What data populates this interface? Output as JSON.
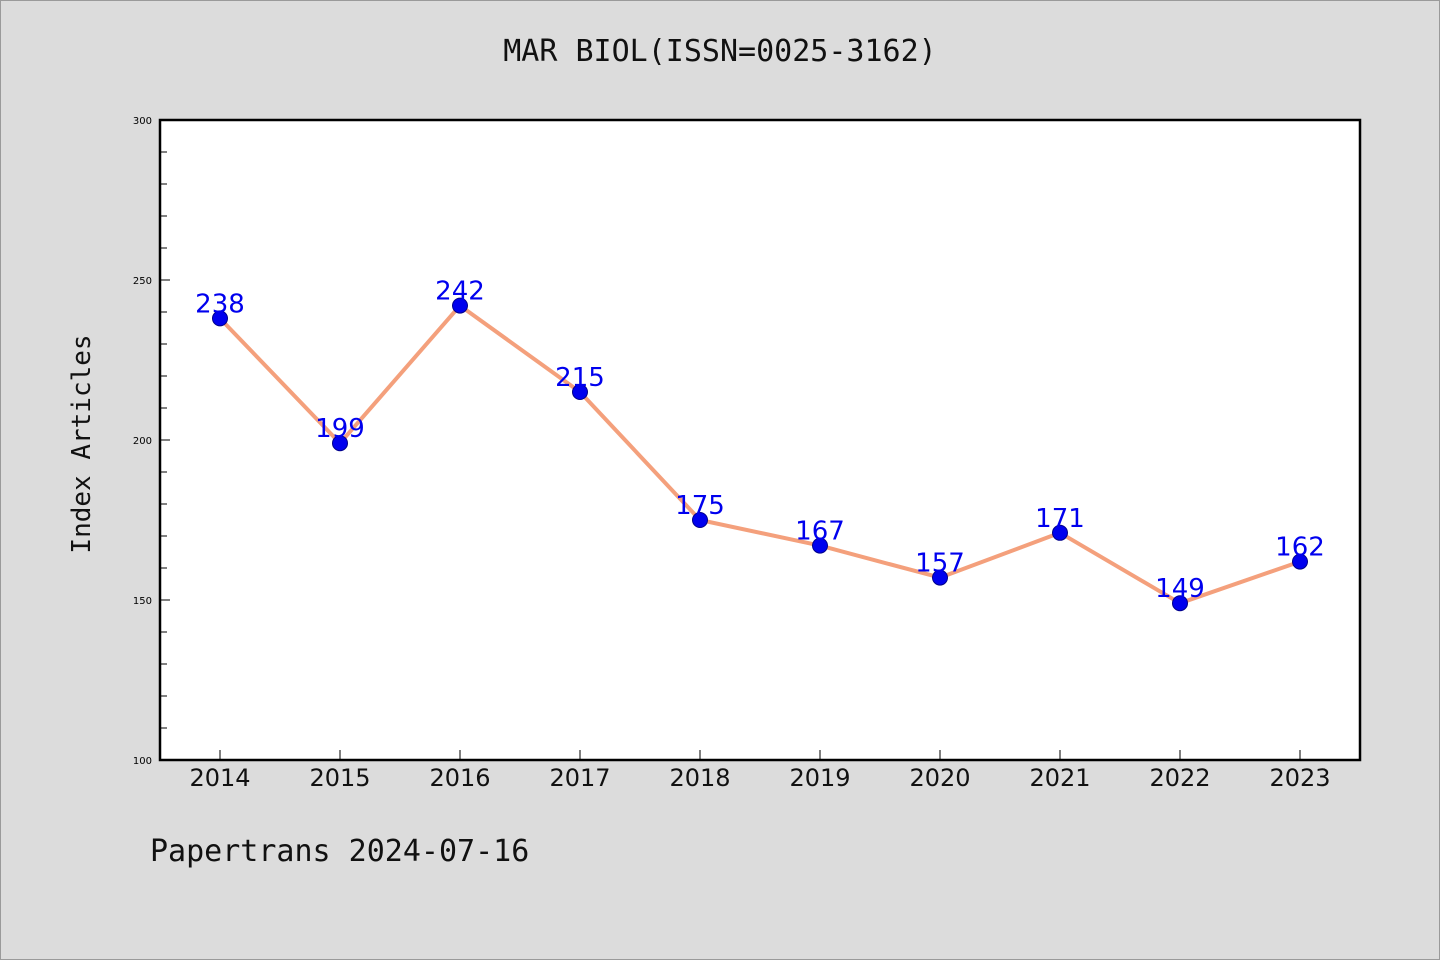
{
  "page": {
    "footer": "Papertrans 2024-07-16"
  },
  "chart_data": {
    "type": "line",
    "title": "MAR BIOL(ISSN=0025-3162)",
    "xlabel": "",
    "ylabel": "Index Articles",
    "categories": [
      "2014",
      "2015",
      "2016",
      "2017",
      "2018",
      "2019",
      "2020",
      "2021",
      "2022",
      "2023"
    ],
    "series": [
      {
        "values": [
          238,
          199,
          242,
          215,
          175,
          167,
          157,
          171,
          149,
          162
        ]
      }
    ],
    "data_labels": [
      "238",
      "199",
      "242",
      "215",
      "175",
      "167",
      "157",
      "171",
      "149",
      "162"
    ],
    "ylim": [
      100,
      300
    ],
    "y_ticks": [
      100,
      150,
      200,
      250,
      300
    ],
    "y_tick_labels": [
      "100",
      "150",
      "200",
      "250",
      "300"
    ],
    "y_minor_step": 10,
    "grid": false,
    "legend": "none",
    "colors": {
      "line": "#f4a07c",
      "marker": "#0000ee",
      "marker_edge": "#00008b",
      "data_label": "#0000ee",
      "plot_background": "#ffffff",
      "plot_border": "#000000"
    }
  }
}
